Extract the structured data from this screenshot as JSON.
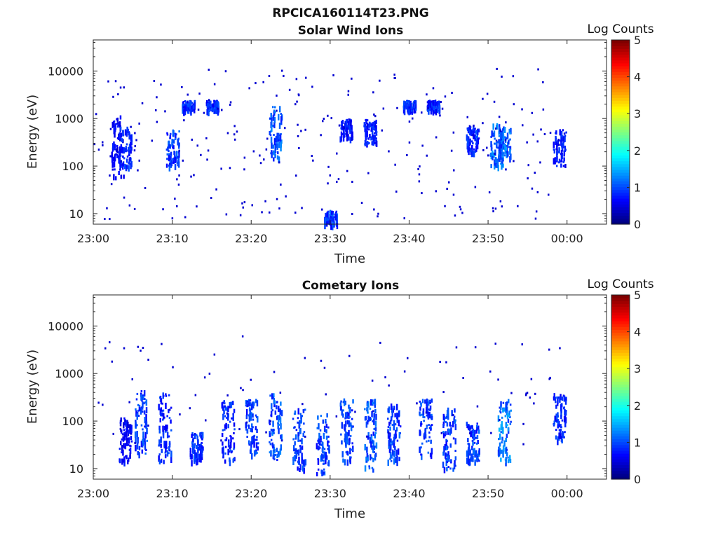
{
  "figure": {
    "title": "RPCICA160114T23.PNG"
  },
  "colors": {
    "axis": "#262626",
    "background": "#ffffff"
  },
  "colorbar": {
    "label": "Log Counts",
    "ticks": [
      "0",
      "1",
      "2",
      "3",
      "4",
      "5"
    ],
    "range": [
      0,
      5
    ],
    "colormap": "jet"
  },
  "chart_data": [
    {
      "type": "heatmap",
      "title": "Solar Wind Ions",
      "xlabel": "Time",
      "ylabel": "Energy (eV)",
      "y_scale": "log",
      "xlim": [
        "23:00",
        "00:05"
      ],
      "ylim": [
        6,
        45000
      ],
      "x_ticks": [
        "23:00",
        "23:10",
        "23:20",
        "23:30",
        "23:40",
        "23:50",
        "00:00"
      ],
      "y_ticks": [
        "10",
        "100",
        "1000",
        "10000"
      ],
      "z_label": "Log Counts",
      "z_range": [
        0,
        5
      ],
      "clusters": [
        {
          "t": "23:03",
          "e_lo": 60,
          "e_hi": 1200,
          "intensity": 0.3
        },
        {
          "t": "23:04",
          "e_lo": 100,
          "e_hi": 700,
          "intensity": 0.4
        },
        {
          "t": "23:10",
          "e_lo": 100,
          "e_hi": 600,
          "intensity": 0.45
        },
        {
          "t": "23:12",
          "e_lo": 1500,
          "e_hi": 2500,
          "intensity": 0.4
        },
        {
          "t": "23:15",
          "e_lo": 1500,
          "e_hi": 2500,
          "intensity": 0.4
        },
        {
          "t": "23:23",
          "e_lo": 150,
          "e_hi": 2000,
          "intensity": 0.5
        },
        {
          "t": "23:30",
          "e_lo": 6,
          "e_hi": 12,
          "intensity": 0.45
        },
        {
          "t": "23:32",
          "e_lo": 400,
          "e_hi": 1000,
          "intensity": 0.35
        },
        {
          "t": "23:35",
          "e_lo": 300,
          "e_hi": 1000,
          "intensity": 0.35
        },
        {
          "t": "23:40",
          "e_lo": 1500,
          "e_hi": 2500,
          "intensity": 0.4
        },
        {
          "t": "23:43",
          "e_lo": 1500,
          "e_hi": 2500,
          "intensity": 0.4
        },
        {
          "t": "23:48",
          "e_lo": 200,
          "e_hi": 700,
          "intensity": 0.4
        },
        {
          "t": "23:51",
          "e_lo": 100,
          "e_hi": 800,
          "intensity": 0.55
        },
        {
          "t": "23:52",
          "e_lo": 150,
          "e_hi": 700,
          "intensity": 0.55
        },
        {
          "t": "23:59",
          "e_lo": 100,
          "e_hi": 600,
          "intensity": 0.35
        }
      ]
    },
    {
      "type": "heatmap",
      "title": "Cometary Ions",
      "xlabel": "Time",
      "ylabel": "Energy (eV)",
      "y_scale": "log",
      "xlim": [
        "23:00",
        "00:05"
      ],
      "ylim": [
        6,
        45000
      ],
      "x_ticks": [
        "23:00",
        "23:10",
        "23:20",
        "23:30",
        "23:40",
        "23:50",
        "00:00"
      ],
      "y_ticks": [
        "10",
        "100",
        "1000",
        "10000"
      ],
      "z_label": "Log Counts",
      "z_range": [
        0,
        5
      ],
      "clusters": [
        {
          "t": "23:04",
          "e_lo": 15,
          "e_hi": 120,
          "intensity": 0.3
        },
        {
          "t": "23:06",
          "e_lo": 20,
          "e_hi": 500,
          "intensity": 0.45
        },
        {
          "t": "23:09",
          "e_lo": 15,
          "e_hi": 400,
          "intensity": 0.4
        },
        {
          "t": "23:13",
          "e_lo": 15,
          "e_hi": 60,
          "intensity": 0.4
        },
        {
          "t": "23:17",
          "e_lo": 15,
          "e_hi": 300,
          "intensity": 0.4
        },
        {
          "t": "23:20",
          "e_lo": 20,
          "e_hi": 300,
          "intensity": 0.45
        },
        {
          "t": "23:23",
          "e_lo": 15,
          "e_hi": 400,
          "intensity": 0.5
        },
        {
          "t": "23:26",
          "e_lo": 10,
          "e_hi": 200,
          "intensity": 0.45
        },
        {
          "t": "23:29",
          "e_lo": 8,
          "e_hi": 150,
          "intensity": 0.45
        },
        {
          "t": "23:32",
          "e_lo": 15,
          "e_hi": 300,
          "intensity": 0.45
        },
        {
          "t": "23:35",
          "e_lo": 10,
          "e_hi": 300,
          "intensity": 0.5
        },
        {
          "t": "23:38",
          "e_lo": 15,
          "e_hi": 250,
          "intensity": 0.45
        },
        {
          "t": "23:42",
          "e_lo": 20,
          "e_hi": 300,
          "intensity": 0.45
        },
        {
          "t": "23:45",
          "e_lo": 10,
          "e_hi": 200,
          "intensity": 0.45
        },
        {
          "t": "23:48",
          "e_lo": 15,
          "e_hi": 100,
          "intensity": 0.45
        },
        {
          "t": "23:52",
          "e_lo": 15,
          "e_hi": 300,
          "intensity": 0.6
        },
        {
          "t": "23:59",
          "e_lo": 40,
          "e_hi": 400,
          "intensity": 0.4
        }
      ]
    }
  ]
}
